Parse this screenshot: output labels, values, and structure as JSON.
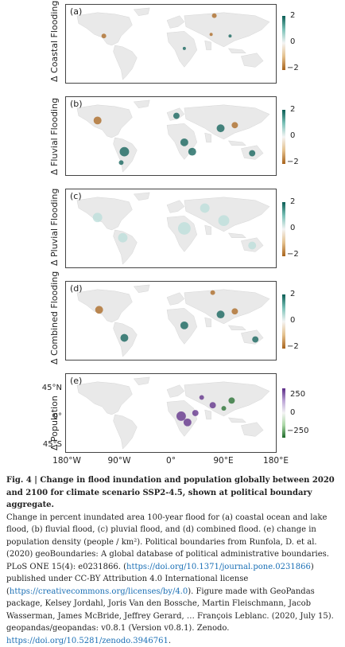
{
  "panels": [
    {
      "letter": "(a)",
      "ylabel": "Δ Coastal Flooding",
      "cbar_ticks": [
        "2",
        "0",
        "−2"
      ]
    },
    {
      "letter": "(b)",
      "ylabel": "Δ Fluvial Flooding",
      "cbar_ticks": [
        "2",
        "0",
        "−2"
      ]
    },
    {
      "letter": "(c)",
      "ylabel": "Δ Pluvial Flooding",
      "cbar_ticks": [
        "2",
        "0",
        "−2"
      ]
    },
    {
      "letter": "(d)",
      "ylabel": "Δ Combined Flooding",
      "cbar_ticks": [
        "2",
        "0",
        "−2"
      ]
    },
    {
      "letter": "(e)",
      "ylabel": "Δ Population",
      "cbar_ticks": [
        "250",
        "0",
        "−250"
      ]
    }
  ],
  "lat_ticks": [
    "45°N",
    "0°",
    "45°S"
  ],
  "lon_ticks": [
    "180°W",
    "90°W",
    "0°",
    "90°E",
    "180°E"
  ],
  "colors": {
    "flood_pos": "#0b5e55",
    "flood_pos_light": "#b9ded9",
    "flood_neg": "#a8641c",
    "flood_neg_light": "#e9cfa7",
    "pop_pos": "#5b2a86",
    "pop_neg": "#1f6b2a",
    "land": "#e9e9e9",
    "link": "#1a6fb5"
  },
  "caption": {
    "title": "Fig. 4 | Change in flood inundation and population globally between 2020 and 2100 for climate scenario SSP2-4.5, shown at political boundary aggregate.",
    "p1": "Change in percent inundated area 100-year flood for (a) coastal ocean and lake flood, (b) fluvial flood, (c) pluvial flood, and (d) combined flood. (e) change in population density (people / km²). Political boundaries from Runfola, D. et al. (2020) geoBoundaries: A global database of political administrative boundaries. PLoS ONE 15(4): e0231866. (",
    "link1": "https://doi.org/10.1371/journal.pone.0231866",
    "p2": ") published under CC-BY Attribution 4.0 International license (",
    "link2": "https://creativecommons.org/licenses/by/4.0",
    "p3": "). Figure made with GeoPandas package, Kelsey Jordahl, Joris Van den Bossche, Martin Fleischmann, Jacob Wasserman, James McBride, Jeffrey Gerard, … François Leblanc. (2020, July 15). geopandas/geopandas: v0.8.1 (Version v0.8.1). Zenodo. ",
    "link3": "https://doi.org/10.5281/zenodo.3946761",
    "p4": "."
  }
}
